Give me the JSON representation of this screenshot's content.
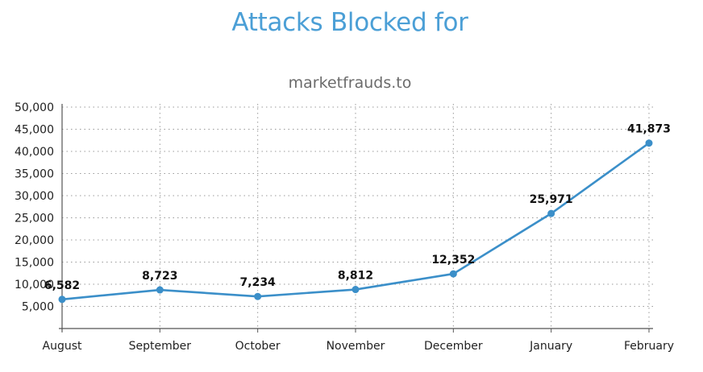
{
  "chart_data": {
    "type": "line",
    "title": "Attacks Blocked for",
    "subtitle": "marketfrauds.to",
    "categories": [
      "August",
      "September",
      "October",
      "November",
      "December",
      "January",
      "February"
    ],
    "series": [
      {
        "values": [
          6582,
          8723,
          7234,
          8812,
          12352,
          25971,
          41873
        ],
        "value_labels": [
          "6,582",
          "8,723",
          "7,234",
          "8,812",
          "12,352",
          "25,971",
          "41,873"
        ]
      }
    ],
    "ylim": [
      0,
      50000
    ],
    "yticks": [
      5000,
      10000,
      15000,
      20000,
      25000,
      30000,
      35000,
      40000,
      45000,
      50000
    ],
    "ytick_labels": [
      "5,000",
      "10,000",
      "15,000",
      "20,000",
      "25,000",
      "30,000",
      "35,000",
      "40,000",
      "45,000",
      "50,000"
    ],
    "grid": "dotted",
    "colors": {
      "title": "#4b9fd6",
      "line": "#3b8fc9",
      "grid": "#9a9a9a",
      "axis": "#555555"
    }
  }
}
